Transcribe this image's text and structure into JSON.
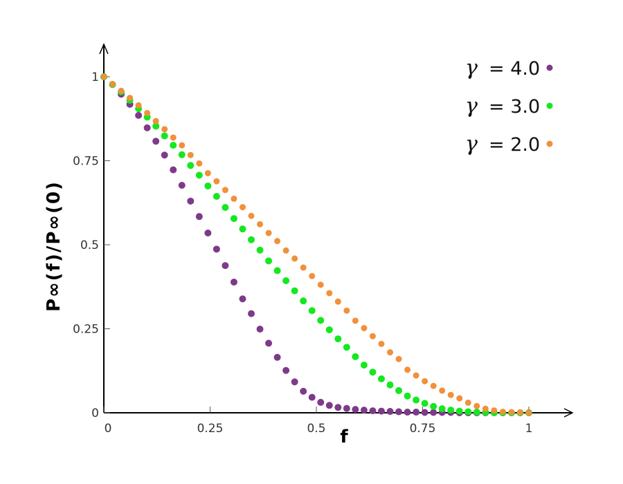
{
  "chart_data": {
    "type": "scatter",
    "title": "",
    "xlabel": "f",
    "ylabel": "P∞(f)/P∞(0)",
    "xlim": [
      0,
      1
    ],
    "ylim": [
      0,
      1
    ],
    "grid": false,
    "legend_position": "top-right",
    "x_ticks": [
      "0",
      "0.25",
      "0.5",
      "0.75",
      "1"
    ],
    "y_ticks": [
      "0",
      "0.25",
      "0.5",
      "0.75",
      "1"
    ],
    "x_step": "1/49 (50 points from 0 to 1)",
    "series": [
      {
        "name": "γ = 4.0",
        "symbol": "γ",
        "label": "= 4.0",
        "color": "#7e3a8a",
        "values": [
          1.0,
          0.977,
          0.948,
          0.918,
          0.885,
          0.848,
          0.808,
          0.767,
          0.723,
          0.677,
          0.63,
          0.584,
          0.535,
          0.487,
          0.438,
          0.389,
          0.339,
          0.295,
          0.249,
          0.207,
          0.165,
          0.126,
          0.092,
          0.064,
          0.046,
          0.031,
          0.022,
          0.016,
          0.013,
          0.01,
          0.008,
          0.006,
          0.005,
          0.004,
          0.003,
          0.002,
          0.002,
          0.001,
          0.001,
          0.001,
          0.001,
          0.0,
          0.0,
          0.0,
          0.0,
          0.0,
          0.0,
          0.0,
          0.0,
          0.0
        ]
      },
      {
        "name": "γ = 3.0",
        "symbol": "γ",
        "label": "= 3.0",
        "color": "#14e81e",
        "values": [
          1.0,
          0.977,
          0.955,
          0.93,
          0.905,
          0.88,
          0.853,
          0.824,
          0.796,
          0.768,
          0.736,
          0.707,
          0.675,
          0.644,
          0.611,
          0.578,
          0.547,
          0.515,
          0.484,
          0.452,
          0.423,
          0.393,
          0.363,
          0.333,
          0.304,
          0.275,
          0.247,
          0.22,
          0.195,
          0.167,
          0.142,
          0.121,
          0.101,
          0.083,
          0.066,
          0.05,
          0.038,
          0.028,
          0.019,
          0.012,
          0.008,
          0.005,
          0.003,
          0.002,
          0.001,
          0.0,
          0.0,
          0.0,
          0.0,
          0.0
        ]
      },
      {
        "name": "γ = 2.0",
        "symbol": "γ",
        "label": "= 2.0",
        "color": "#f0913a",
        "values": [
          1.0,
          0.978,
          0.958,
          0.937,
          0.915,
          0.892,
          0.868,
          0.844,
          0.819,
          0.796,
          0.767,
          0.742,
          0.713,
          0.689,
          0.663,
          0.637,
          0.612,
          0.586,
          0.561,
          0.535,
          0.511,
          0.483,
          0.459,
          0.432,
          0.407,
          0.381,
          0.356,
          0.331,
          0.304,
          0.274,
          0.252,
          0.228,
          0.205,
          0.18,
          0.16,
          0.128,
          0.111,
          0.094,
          0.08,
          0.066,
          0.053,
          0.043,
          0.03,
          0.02,
          0.012,
          0.007,
          0.003,
          0.002,
          0.001,
          0.0
        ]
      }
    ]
  }
}
